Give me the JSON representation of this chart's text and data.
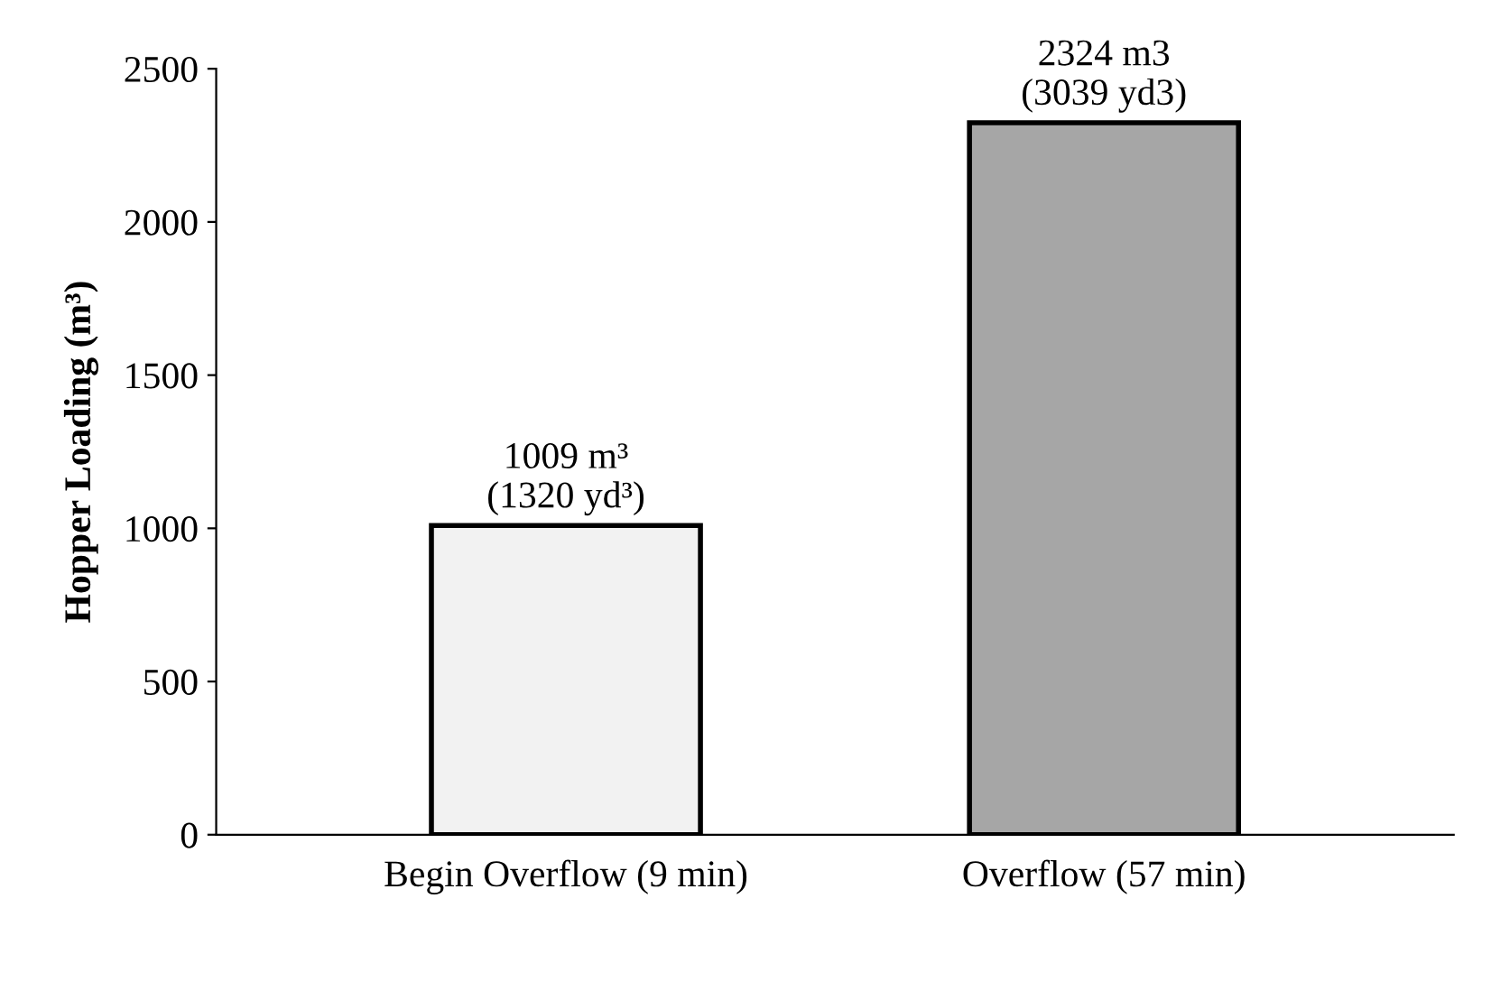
{
  "chart_data": {
    "type": "bar",
    "ylabel": "Hopper Loading (m³)",
    "categories": [
      "Begin Overflow (9 min)",
      "Overflow (57 min)"
    ],
    "values": [
      1009,
      2324
    ],
    "colors": [
      "#f2f2f2",
      "#a6a6a6"
    ],
    "value_labels": [
      "1009 m³\n(1320 yd³)",
      "2324 m3\n(3039 yd3)"
    ],
    "ylim": [
      0,
      2500
    ],
    "yticks": [
      0,
      500,
      1000,
      1500,
      2000,
      2500
    ],
    "grid": false,
    "legend": false
  }
}
